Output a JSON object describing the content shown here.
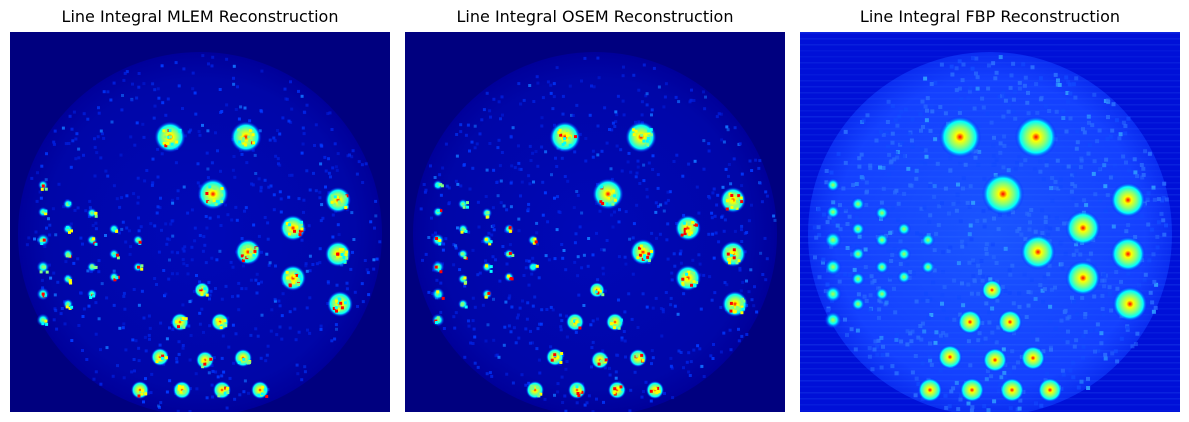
{
  "figure": {
    "panels": [
      {
        "id": "mlem",
        "title": "Line Integral MLEM Reconstruction",
        "style": "mlem"
      },
      {
        "id": "osem",
        "title": "Line Integral OSEM Reconstruction",
        "style": "osem"
      },
      {
        "id": "fbp",
        "title": "Line Integral FBP Reconstruction",
        "style": "fbp"
      }
    ],
    "colormap": "jet",
    "colors": {
      "background_low": "#00007f",
      "mid_blue": "#0000ff",
      "cyan": "#00ffff",
      "yellow": "#ffff00",
      "red": "#ff0000"
    }
  }
}
